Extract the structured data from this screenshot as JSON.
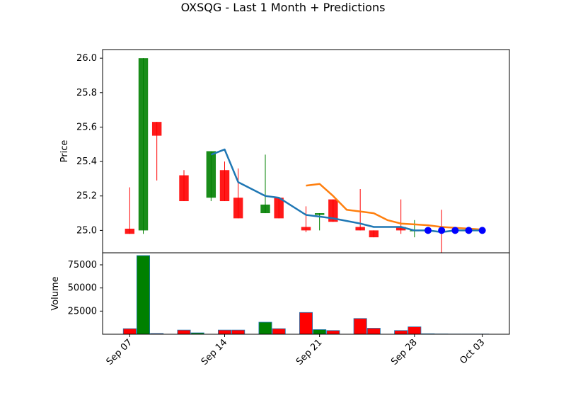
{
  "title": "OXSQG - Last 1 Month + Predictions",
  "colors": {
    "up": "#008000",
    "down": "#ff0000",
    "ma_line": "#1f77b4",
    "prediction_line": "#ff7f0e",
    "prediction_marker": "#0000ff",
    "volume_edge": "#1f77b4"
  },
  "chart_data": [
    {
      "type": "candlestick",
      "ylabel": "Price",
      "ylim": [
        24.87,
        26.05
      ],
      "yticks": [
        "25.0",
        "25.2",
        "25.4",
        "25.6",
        "25.8",
        "26.0"
      ],
      "candles": [
        {
          "date": "2023-09-07",
          "open": 25.01,
          "high": 25.25,
          "low": 24.98,
          "close": 24.98
        },
        {
          "date": "2023-09-08",
          "open": 25.0,
          "high": 26.0,
          "low": 24.98,
          "close": 26.0
        },
        {
          "date": "2023-09-09",
          "open": 25.63,
          "high": 25.63,
          "low": 25.29,
          "close": 25.55
        },
        {
          "date": "2023-09-11",
          "open": 25.32,
          "high": 25.35,
          "low": 25.17,
          "close": 25.17
        },
        {
          "date": "2023-09-13",
          "open": 25.19,
          "high": 25.46,
          "low": 25.17,
          "close": 25.46
        },
        {
          "date": "2023-09-14",
          "open": 25.35,
          "high": 25.4,
          "low": 25.17,
          "close": 25.17
        },
        {
          "date": "2023-09-15",
          "open": 25.19,
          "high": 25.36,
          "low": 25.07,
          "close": 25.07
        },
        {
          "date": "2023-09-17",
          "open": 25.1,
          "high": 25.44,
          "low": 25.1,
          "close": 25.15
        },
        {
          "date": "2023-09-18",
          "open": 25.19,
          "high": 25.19,
          "low": 25.07,
          "close": 25.07
        },
        {
          "date": "2023-09-20",
          "open": 25.02,
          "high": 25.14,
          "low": 24.99,
          "close": 25.0
        },
        {
          "date": "2023-09-21",
          "open": 25.09,
          "high": 25.1,
          "low": 25.0,
          "close": 25.1
        },
        {
          "date": "2023-09-22",
          "open": 25.18,
          "high": 25.18,
          "low": 25.05,
          "close": 25.05
        },
        {
          "date": "2023-09-24",
          "open": 25.02,
          "high": 25.24,
          "low": 25.0,
          "close": 25.0
        },
        {
          "date": "2023-09-25",
          "open": 25.0,
          "high": 25.0,
          "low": 24.96,
          "close": 24.96
        },
        {
          "date": "2023-09-27",
          "open": 25.02,
          "high": 25.18,
          "low": 24.98,
          "close": 25.0
        },
        {
          "date": "2023-09-28",
          "open": 25.0,
          "high": 25.06,
          "low": 24.96,
          "close": 25.0
        }
      ],
      "moving_average": [
        {
          "date": "2023-09-13",
          "value": 25.44
        },
        {
          "date": "2023-09-14",
          "value": 25.47
        },
        {
          "date": "2023-09-15",
          "value": 25.28
        },
        {
          "date": "2023-09-17",
          "value": 25.2
        },
        {
          "date": "2023-09-18",
          "value": 25.19
        },
        {
          "date": "2023-09-20",
          "value": 25.09
        },
        {
          "date": "2023-09-21",
          "value": 25.08
        },
        {
          "date": "2023-09-22",
          "value": 25.07
        },
        {
          "date": "2023-09-24",
          "value": 25.04
        },
        {
          "date": "2023-09-25",
          "value": 25.02
        },
        {
          "date": "2023-09-27",
          "value": 25.02
        },
        {
          "date": "2023-09-28",
          "value": 25.0
        },
        {
          "date": "2023-09-29",
          "value": 25.0
        },
        {
          "date": "2023-09-30",
          "value": 24.99
        },
        {
          "date": "2023-10-01",
          "value": 25.0
        },
        {
          "date": "2023-10-02",
          "value": 25.0
        },
        {
          "date": "2023-10-03",
          "value": 25.0
        }
      ],
      "prediction_line": [
        {
          "date": "2023-09-20",
          "value": 25.26
        },
        {
          "date": "2023-09-21",
          "value": 25.27
        },
        {
          "date": "2023-09-22",
          "value": 25.2
        },
        {
          "date": "2023-09-23",
          "value": 25.12
        },
        {
          "date": "2023-09-25",
          "value": 25.1
        },
        {
          "date": "2023-09-26",
          "value": 25.06
        },
        {
          "date": "2023-09-27",
          "value": 25.04
        },
        {
          "date": "2023-09-28",
          "value": 25.035
        },
        {
          "date": "2023-09-29",
          "value": 25.03
        },
        {
          "date": "2023-09-30",
          "value": 25.02
        },
        {
          "date": "2023-10-01",
          "value": 25.015
        },
        {
          "date": "2023-10-02",
          "value": 25.01
        },
        {
          "date": "2023-10-03",
          "value": 25.005
        }
      ],
      "prediction_points": [
        {
          "date": "2023-09-29",
          "value": 25.0
        },
        {
          "date": "2023-09-30",
          "value": 25.0
        },
        {
          "date": "2023-10-01",
          "value": 25.0
        },
        {
          "date": "2023-10-02",
          "value": 25.0
        },
        {
          "date": "2023-10-03",
          "value": 25.0
        }
      ],
      "extra_wicks": [
        {
          "date": "2023-09-30",
          "high": 25.12,
          "low": 24.87
        }
      ]
    },
    {
      "type": "bar",
      "ylabel": "Volume",
      "ylim": [
        0,
        88000
      ],
      "yticks": [
        "25000",
        "50000",
        "75000"
      ],
      "bars": [
        {
          "date": "2023-09-07",
          "value": 6000,
          "direction": "down"
        },
        {
          "date": "2023-09-08",
          "value": 85000,
          "direction": "up"
        },
        {
          "date": "2023-09-09",
          "value": 800,
          "direction": "down"
        },
        {
          "date": "2023-09-11",
          "value": 4500,
          "direction": "down"
        },
        {
          "date": "2023-09-12",
          "value": 1500,
          "direction": "up"
        },
        {
          "date": "2023-09-14",
          "value": 4500,
          "direction": "down"
        },
        {
          "date": "2023-09-15",
          "value": 4500,
          "direction": "down"
        },
        {
          "date": "2023-09-17",
          "value": 13000,
          "direction": "up"
        },
        {
          "date": "2023-09-18",
          "value": 6000,
          "direction": "down"
        },
        {
          "date": "2023-09-20",
          "value": 23500,
          "direction": "down"
        },
        {
          "date": "2023-09-21",
          "value": 5000,
          "direction": "up"
        },
        {
          "date": "2023-09-22",
          "value": 4000,
          "direction": "down"
        },
        {
          "date": "2023-09-24",
          "value": 17000,
          "direction": "down"
        },
        {
          "date": "2023-09-25",
          "value": 6500,
          "direction": "down"
        },
        {
          "date": "2023-09-27",
          "value": 4000,
          "direction": "down"
        },
        {
          "date": "2023-09-28",
          "value": 8000,
          "direction": "down"
        },
        {
          "date": "2023-09-29",
          "value": 500,
          "direction": "down"
        },
        {
          "date": "2023-09-30",
          "value": 300,
          "direction": "down"
        },
        {
          "date": "2023-10-01",
          "value": 200,
          "direction": "down"
        },
        {
          "date": "2023-10-02",
          "value": 200,
          "direction": "down"
        },
        {
          "date": "2023-10-03",
          "value": 200,
          "direction": "down"
        }
      ],
      "xticks": [
        {
          "date": "2023-09-07",
          "label": "Sep 07"
        },
        {
          "date": "2023-09-14",
          "label": "Sep 14"
        },
        {
          "date": "2023-09-21",
          "label": "Sep 21"
        },
        {
          "date": "2023-09-28",
          "label": "Sep 28"
        },
        {
          "date": "2023-10-03",
          "label": "Oct 03"
        }
      ]
    }
  ]
}
